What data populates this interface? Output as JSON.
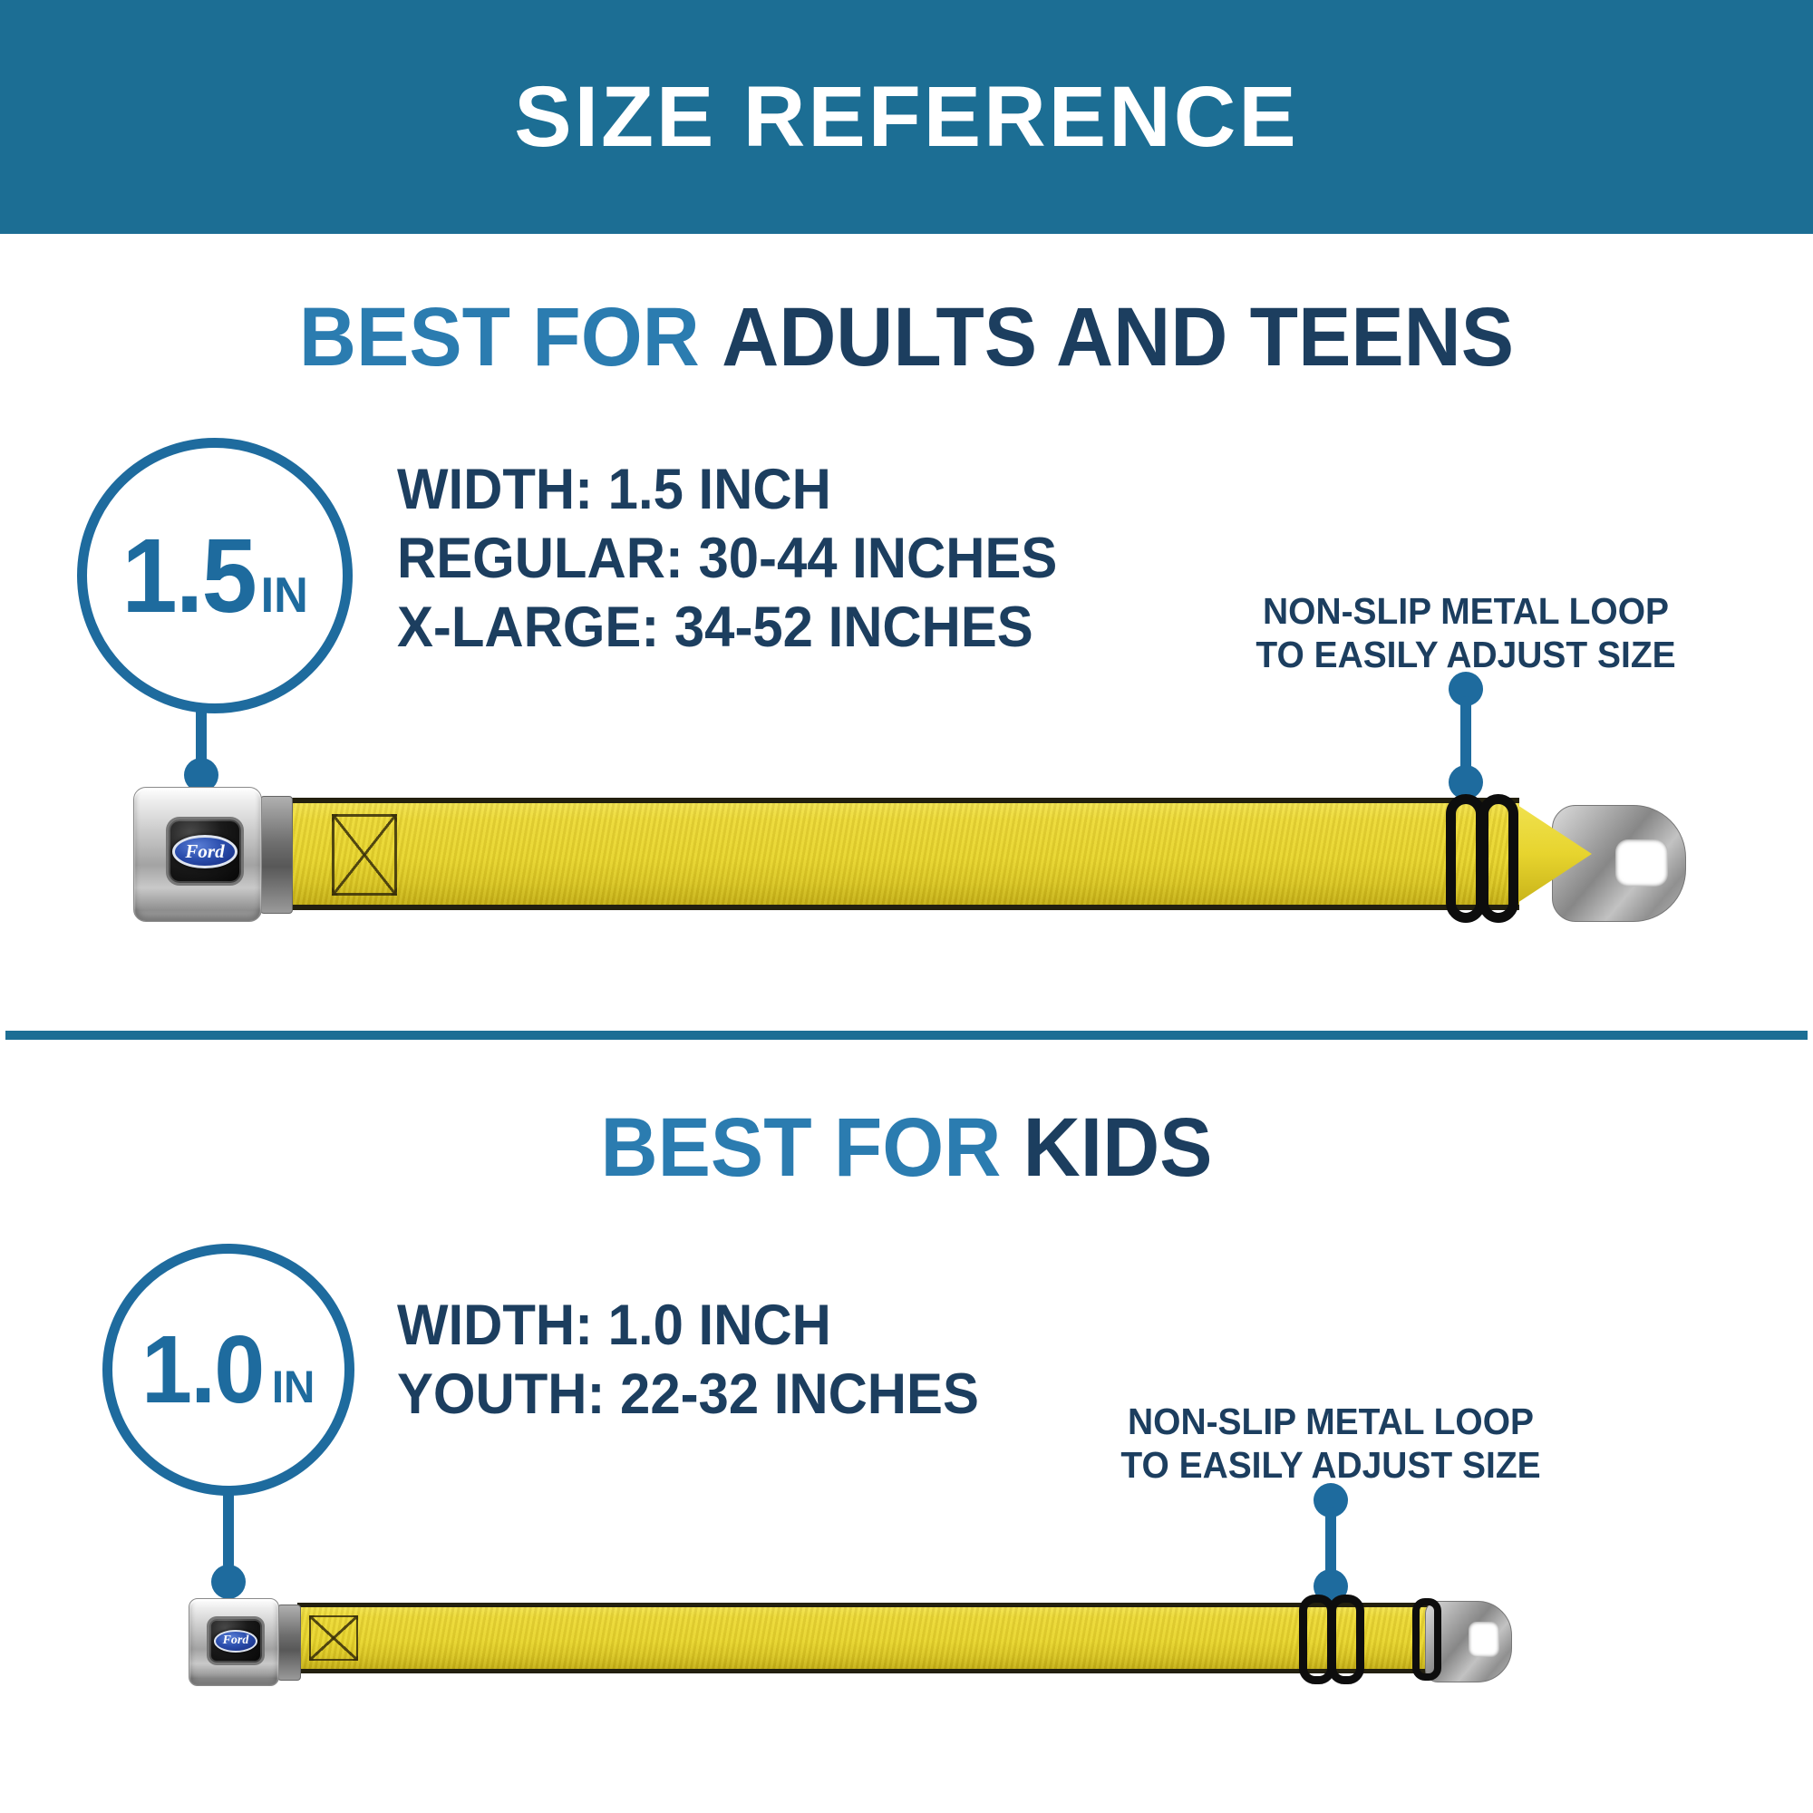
{
  "header": {
    "title": "SIZE REFERENCE"
  },
  "colors": {
    "header_bg": "#1c6e94",
    "heading_prefix_blue": "#2b7cb0",
    "navy_text": "#1c3e5f",
    "badge_blue": "#1e6b9e",
    "divider": "#1c6e94",
    "strap_yellow": "#e7d42e",
    "ford_oval_blue": "#2c4fae"
  },
  "sections": [
    {
      "heading_prefix": "BEST FOR",
      "heading_main": "ADULTS AND TEENS",
      "badge_value": "1.5",
      "badge_unit": "IN",
      "specs": [
        "WIDTH: 1.5 INCH",
        "REGULAR: 30-44 INCHES",
        "X-LARGE: 34-52 INCHES"
      ],
      "callout_line1": "NON-SLIP METAL LOOP",
      "callout_line2": "TO EASILY ADJUST SIZE",
      "buckle_brand": "Ford"
    },
    {
      "heading_prefix": "BEST FOR",
      "heading_main": "KIDS",
      "badge_value": "1.0",
      "badge_unit": "IN",
      "specs": [
        "WIDTH: 1.0 INCH",
        "YOUTH: 22-32 INCHES"
      ],
      "callout_line1": "NON-SLIP METAL LOOP",
      "callout_line2": "TO EASILY ADJUST SIZE",
      "buckle_brand": "Ford"
    }
  ]
}
